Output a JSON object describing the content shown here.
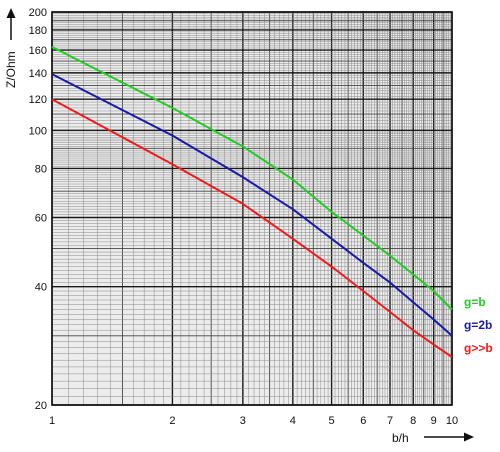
{
  "chart_data": {
    "type": "line",
    "xlabel": "b/h",
    "ylabel": "Z/Ohm",
    "xscale": "log",
    "yscale": "log",
    "xlim": [
      1,
      10
    ],
    "ylim": [
      20,
      200
    ],
    "grid": true,
    "legend": "right, at line ends",
    "x_ticks": [
      1,
      2,
      3,
      4,
      5,
      6,
      7,
      8,
      9,
      10
    ],
    "y_ticks": [
      20,
      40,
      60,
      80,
      100,
      120,
      140,
      160,
      180,
      200
    ],
    "x_tick_labels": [
      "1",
      "2",
      "3",
      "4",
      "5",
      "6",
      "7",
      "8",
      "9",
      "10"
    ],
    "y_tick_labels": [
      "20",
      "40",
      "60",
      "80",
      "100",
      "120",
      "140",
      "160",
      "180",
      "200"
    ],
    "series": [
      {
        "name": "g=b",
        "color": "#22cc22",
        "x": [
          1,
          2,
          3,
          4,
          5,
          6,
          7,
          8,
          9,
          10
        ],
        "y": [
          163,
          114,
          91,
          75,
          62,
          54,
          48,
          43,
          39,
          35
        ]
      },
      {
        "name": "g=2b",
        "color": "#1a1aa8",
        "x": [
          1,
          2,
          3,
          4,
          5,
          6,
          7,
          8,
          9,
          10
        ],
        "y": [
          139,
          97,
          76,
          63,
          53,
          46,
          41,
          36.5,
          33,
          30
        ]
      },
      {
        "name": "g>>b",
        "color": "#ee1c1c",
        "x": [
          1,
          2,
          3,
          4,
          5,
          6,
          7,
          8,
          9,
          10
        ],
        "y": [
          120,
          82,
          65,
          53,
          45,
          39,
          34.5,
          31,
          28.5,
          26.5
        ]
      }
    ]
  }
}
